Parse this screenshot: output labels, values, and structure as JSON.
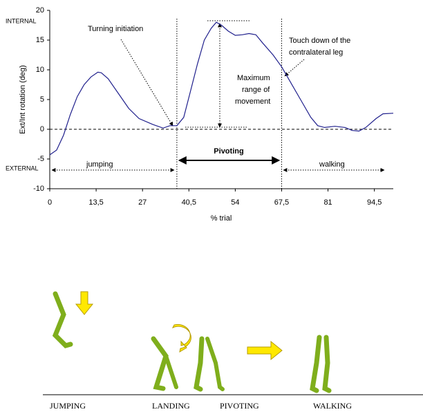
{
  "chart_data": {
    "type": "line",
    "y_label": "Ext/Int rotation (deg)",
    "x_label": "% trial",
    "x": [
      0,
      2,
      4,
      6,
      8,
      10,
      12,
      14,
      15,
      17,
      20,
      23,
      26,
      30,
      33,
      35,
      37,
      39,
      41,
      43,
      45,
      47,
      48.5,
      50,
      52,
      54,
      56,
      58,
      60,
      62,
      65,
      67.5,
      70,
      73,
      76,
      78,
      80,
      83,
      86,
      88,
      90,
      92,
      95,
      97,
      100
    ],
    "values": [
      -4.3,
      -3.5,
      -1,
      2.5,
      5.5,
      7.5,
      8.8,
      9.6,
      9.5,
      8.5,
      6,
      3.5,
      1.8,
      0.8,
      0.2,
      0.6,
      0.6,
      2,
      6.5,
      11,
      15,
      17,
      18,
      17.5,
      16.5,
      15.8,
      15.9,
      16.1,
      15.9,
      14.5,
      12.5,
      10.5,
      8,
      5,
      2,
      0.6,
      0.3,
      0.5,
      0.3,
      -0.2,
      -0.3,
      0.3,
      1.8,
      2.6,
      2.7
    ],
    "color": "#1f1f8c",
    "xlim": [
      0,
      100
    ],
    "ylim": [
      -10,
      20
    ],
    "xticks": [
      0,
      {
        "value": 13.5,
        "label": "13,5"
      },
      27,
      {
        "value": 40.5,
        "label": "40,5"
      },
      54,
      {
        "value": 67.5,
        "label": "67,5"
      },
      81,
      {
        "value": 94.5,
        "label": "94,5"
      }
    ],
    "yticks": [
      -10,
      -5,
      0,
      5,
      10,
      15,
      20
    ],
    "phase_bounds_x": [
      37,
      67.5
    ],
    "annotations": {
      "internal": "INTERNAL",
      "external": "EXTERNAL",
      "turning": "Turning initiation",
      "touch1": "Touch down of the",
      "touch2": "contralateral leg",
      "max1": "Maximum",
      "max2": "range of",
      "max3": "movement",
      "jumping": "jumping",
      "pivoting": "Pivoting",
      "walking": "walking"
    }
  },
  "phases": [
    "JUMPING",
    "LANDING",
    "PIVOTING",
    "WALKING"
  ]
}
